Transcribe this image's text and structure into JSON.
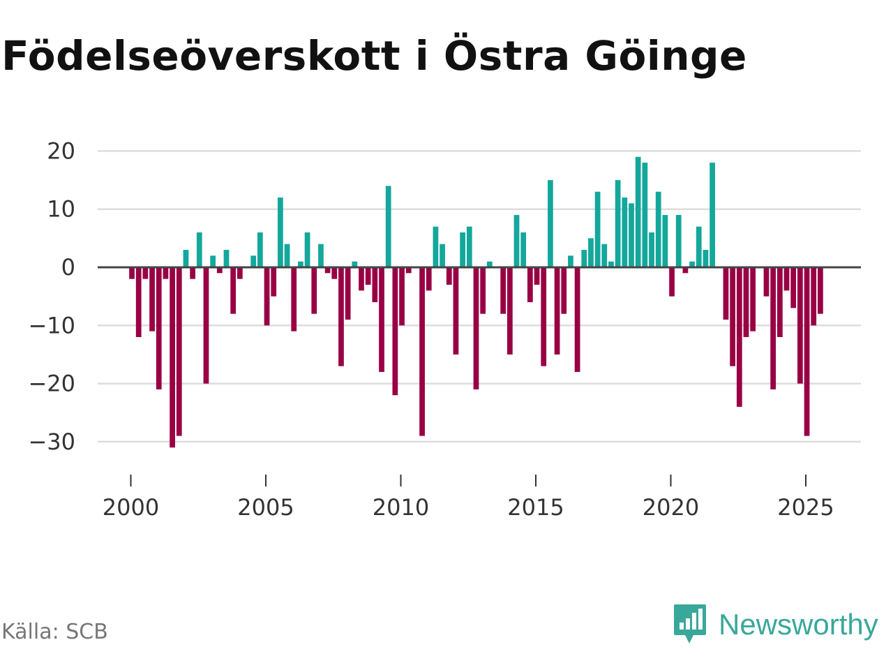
{
  "title": "Födelseöverskott i Östra Göinge",
  "source_label": "Källa: SCB",
  "brand_name": "Newsworthy",
  "colors": {
    "positive": "#14a79c",
    "negative": "#990044",
    "brand": "#3aa79b"
  },
  "chart_data": {
    "type": "bar",
    "title": "Födelseöverskott i Östra Göinge",
    "xlabel": "",
    "ylabel": "",
    "xlim": [
      1999.5,
      2026.8
    ],
    "ylim": [
      -35,
      22
    ],
    "y_ticks": [
      20,
      10,
      0,
      -10,
      -20,
      -30
    ],
    "y_tick_labels": [
      "20",
      "10",
      "0",
      "−10",
      "−20",
      "−30"
    ],
    "x_ticks": [
      2000,
      2005,
      2010,
      2015,
      2020,
      2025
    ],
    "x_tick_labels": [
      "2000",
      "2005",
      "2010",
      "2015",
      "2020",
      "2025"
    ],
    "gridlines": true,
    "start_year": 2000.04,
    "step": 0.25,
    "values": [
      -2,
      -12,
      -2,
      -11,
      -21,
      -2,
      -31,
      -29,
      3,
      -2,
      6,
      -20,
      2,
      -1,
      3,
      -8,
      -2,
      0,
      2,
      6,
      -10,
      -5,
      12,
      4,
      -11,
      1,
      6,
      -8,
      4,
      -1,
      -2,
      -17,
      -9,
      1,
      -4,
      -3,
      -6,
      -18,
      14,
      -22,
      -10,
      -1,
      0,
      -29,
      -4,
      7,
      4,
      -3,
      -15,
      6,
      7,
      -21,
      -8,
      1,
      0,
      -8,
      -15,
      9,
      6,
      -6,
      -3,
      -17,
      15,
      -15,
      -8,
      2,
      -18,
      3,
      5,
      13,
      4,
      1,
      15,
      12,
      11,
      19,
      18,
      6,
      13,
      9,
      -5,
      9,
      -1,
      1,
      7,
      3,
      18,
      0,
      -9,
      -17,
      -24,
      -12,
      -11,
      0,
      -5,
      -21,
      -12,
      -4,
      -7,
      -20,
      -29,
      -10,
      -8
    ]
  }
}
